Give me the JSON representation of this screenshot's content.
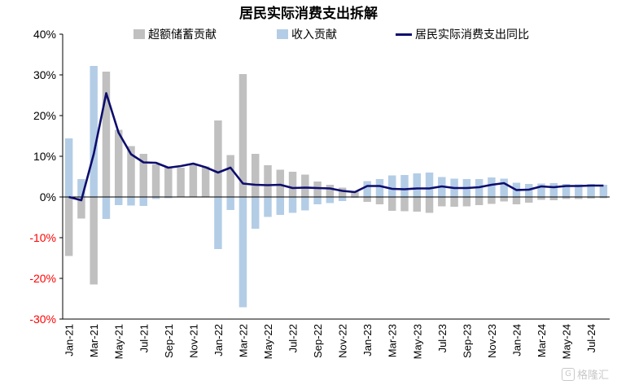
{
  "colors": {
    "excess": "#c0c0c0",
    "income": "#b4cde6",
    "line": "#0d0d6e",
    "axis": "#000000",
    "neg_label": "#ff0000"
  },
  "watermark": {
    "icon": "gelonghui-logo-icon",
    "text": "格隆汇"
  },
  "chart_data": {
    "type": "bar",
    "title": "居民实际消费支出拆解",
    "legend": [
      "超额储蓄贡献",
      "收入贡献",
      "居民实际消费支出同比"
    ],
    "legend_position": "top",
    "grid": false,
    "ylim": [
      -30,
      40
    ],
    "yticks": [
      "40%",
      "30%",
      "20%",
      "10%",
      "0%",
      "-10%",
      "-20%",
      "-30%"
    ],
    "ytick_values": [
      40,
      30,
      20,
      10,
      0,
      -10,
      -20,
      -30
    ],
    "categories": [
      "Jan-21",
      "Feb-21",
      "Mar-21",
      "Apr-21",
      "May-21",
      "Jun-21",
      "Jul-21",
      "Aug-21",
      "Sep-21",
      "Oct-21",
      "Nov-21",
      "Dec-21",
      "Jan-22",
      "Feb-22",
      "Mar-22",
      "Apr-22",
      "May-22",
      "Jun-22",
      "Jul-22",
      "Aug-22",
      "Sep-22",
      "Oct-22",
      "Nov-22",
      "Dec-22",
      "Jan-23",
      "Feb-23",
      "Mar-23",
      "Apr-23",
      "May-23",
      "Jun-23",
      "Jul-23",
      "Aug-23",
      "Sep-23",
      "Oct-23",
      "Nov-23",
      "Dec-23",
      "Jan-24",
      "Feb-24",
      "Mar-24",
      "Apr-24",
      "May-24",
      "Jun-24",
      "Jul-24",
      "Aug-24"
    ],
    "xtick_labels": [
      "Jan-21",
      "Mar-21",
      "May-21",
      "Jul-21",
      "Sep-21",
      "Nov-21",
      "Jan-22",
      "Mar-22",
      "May-22",
      "Jul-22",
      "Sep-22",
      "Nov-22",
      "Jan-23",
      "Mar-23",
      "May-23",
      "Jul-23",
      "Sep-23",
      "Nov-23",
      "Jan-24",
      "Mar-24",
      "May-24",
      "Jul-24"
    ],
    "series": [
      {
        "name": "超额储蓄贡献",
        "kind": "bar",
        "values": [
          -14.5,
          -5.3,
          -21.5,
          30.8,
          16.5,
          12.5,
          10.6,
          8.0,
          7.5,
          7.2,
          8.1,
          7.5,
          18.8,
          10.3,
          30.2,
          10.6,
          7.8,
          6.7,
          6.2,
          5.5,
          3.8,
          3.0,
          2.3,
          1.5,
          -1.2,
          -1.8,
          -3.4,
          -3.5,
          -3.6,
          -3.9,
          -2.3,
          -2.4,
          -2.3,
          -2.0,
          -1.7,
          -1.1,
          -1.8,
          -1.4,
          -0.7,
          -0.8,
          -0.5,
          -0.5,
          -0.4,
          -0.3
        ]
      },
      {
        "name": "收入贡献",
        "kind": "bar",
        "values": [
          14.4,
          4.4,
          32.2,
          -5.4,
          -2.0,
          -2.1,
          -2.2,
          -0.5,
          -0.3,
          0.3,
          0.5,
          0.6,
          -12.8,
          -3.2,
          -27.1,
          -7.8,
          -4.9,
          -4.4,
          -3.9,
          -3.3,
          -1.8,
          -1.5,
          -1.0,
          -0.2,
          3.9,
          4.4,
          5.3,
          5.4,
          5.8,
          6.0,
          4.9,
          4.5,
          4.4,
          4.4,
          4.8,
          4.5,
          3.5,
          3.2,
          3.3,
          3.4,
          3.2,
          3.1,
          3.2,
          3.0
        ]
      },
      {
        "name": "居民实际消费支出同比",
        "kind": "line",
        "values": [
          0.0,
          -0.8,
          10.6,
          25.5,
          15.8,
          10.5,
          8.5,
          8.4,
          7.2,
          7.6,
          8.2,
          7.3,
          6.0,
          7.2,
          3.3,
          3.0,
          2.9,
          3.0,
          2.2,
          2.3,
          2.2,
          2.1,
          1.5,
          1.2,
          2.7,
          2.7,
          2.0,
          1.9,
          2.1,
          2.1,
          2.6,
          2.2,
          2.2,
          2.4,
          3.0,
          3.4,
          1.7,
          1.8,
          2.6,
          2.4,
          2.7,
          2.7,
          2.8,
          2.8
        ]
      }
    ]
  }
}
